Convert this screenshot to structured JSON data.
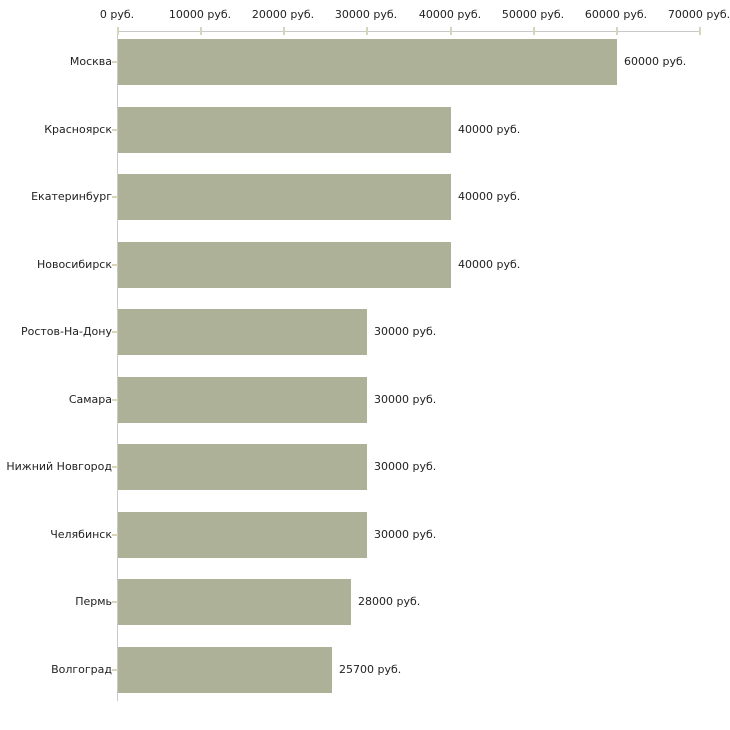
{
  "chart_data": {
    "type": "bar",
    "orientation": "horizontal",
    "title": "",
    "xlabel": "",
    "ylabel": "",
    "xlim": [
      0,
      70000
    ],
    "grid": false,
    "legend": null,
    "categories": [
      "Москва",
      "Красноярск",
      "Екатеринбург",
      "Новосибирск",
      "Ростов-На-Дону",
      "Самара",
      "Нижний Новгород",
      "Челябинск",
      "Пермь",
      "Волгоград"
    ],
    "values": [
      60000,
      40000,
      40000,
      40000,
      30000,
      30000,
      30000,
      30000,
      28000,
      25700
    ],
    "value_labels": [
      "60000 руб.",
      "40000 руб.",
      "40000 руб.",
      "40000 руб.",
      "30000 руб.",
      "30000 руб.",
      "30000 руб.",
      "30000 руб.",
      "28000 руб.",
      "25700 руб."
    ],
    "x_ticks": [
      0,
      10000,
      20000,
      30000,
      40000,
      50000,
      60000,
      70000
    ],
    "x_tick_labels": [
      "0 руб.",
      "10000 руб.",
      "20000 руб.",
      "30000 руб.",
      "40000 руб.",
      "50000 руб.",
      "60000 руб.",
      "70000 руб."
    ],
    "colors": {
      "bar_fill": "#acb197",
      "axis_line": "#c9c9c9",
      "tick_mark": "#d8d5ba",
      "text": "#222222",
      "background": "#ffffff"
    }
  }
}
